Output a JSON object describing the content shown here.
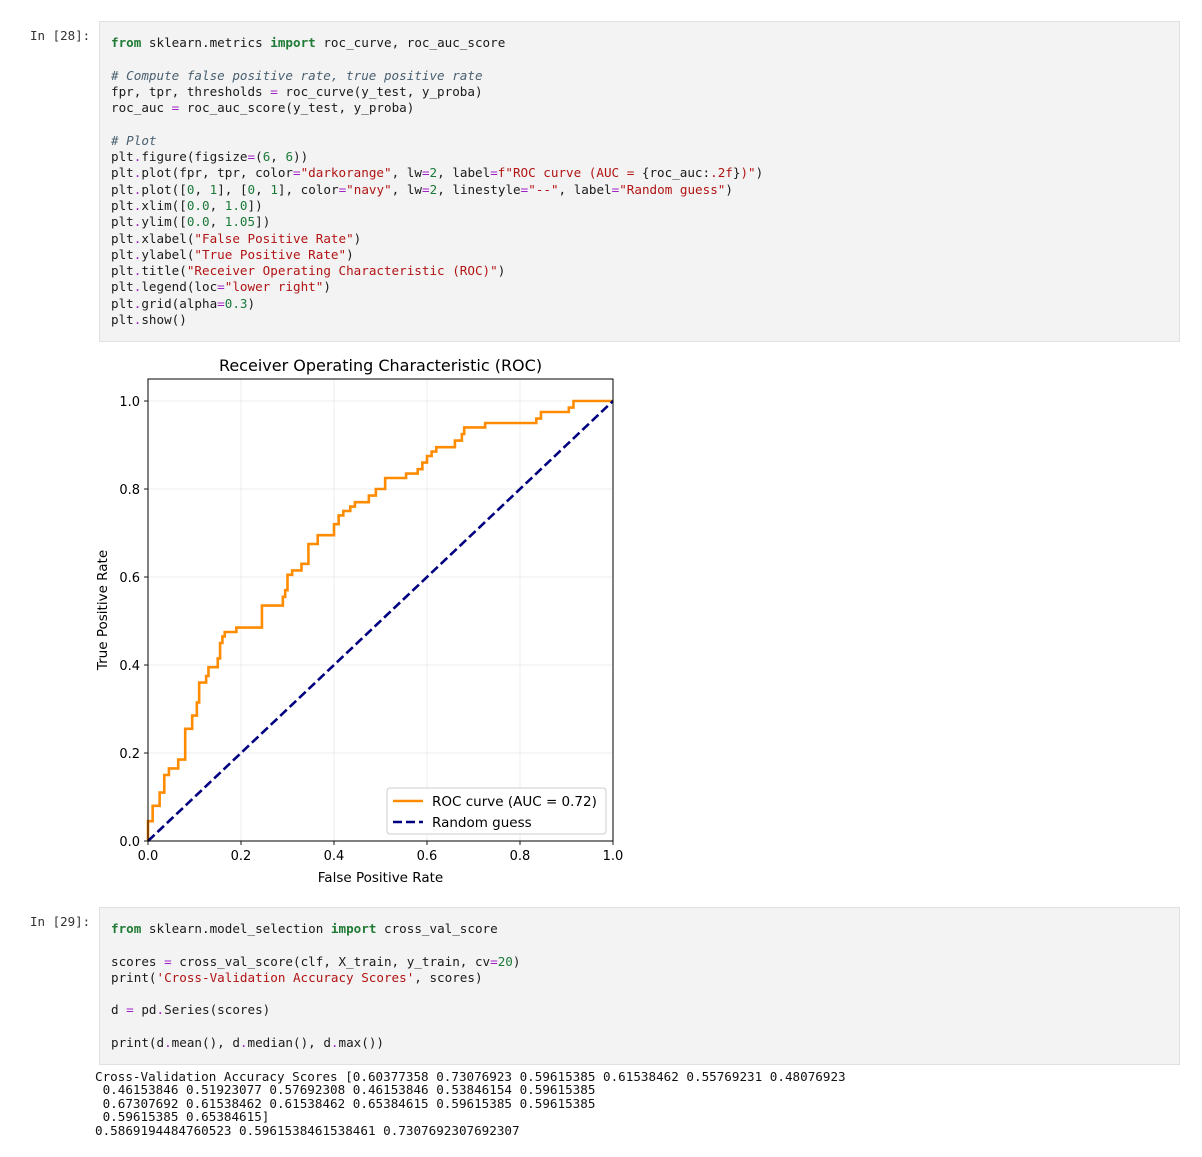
{
  "cells": [
    {
      "prompt": "In [28]:",
      "code_lines": [
        [
          [
            "kw",
            "from"
          ],
          [
            "t",
            " sklearn.metrics "
          ],
          [
            "kw",
            "import"
          ],
          [
            "t",
            " roc_curve, roc_auc_score"
          ]
        ],
        [],
        [
          [
            "cm",
            "# Compute false positive rate, true positive rate"
          ]
        ],
        [
          [
            "t",
            "fpr, tpr, thresholds "
          ],
          [
            "op",
            "="
          ],
          [
            "t",
            " roc_curve(y_test, y_proba)"
          ]
        ],
        [
          [
            "t",
            "roc_auc "
          ],
          [
            "op",
            "="
          ],
          [
            "t",
            " roc_auc_score(y_test, y_proba)"
          ]
        ],
        [],
        [
          [
            "cm",
            "# Plot"
          ]
        ],
        [
          [
            "t",
            "plt"
          ],
          [
            "op",
            "."
          ],
          [
            "t",
            "figure(figsize"
          ],
          [
            "op",
            "="
          ],
          [
            "t",
            "("
          ],
          [
            "num",
            "6"
          ],
          [
            "t",
            ", "
          ],
          [
            "num",
            "6"
          ],
          [
            "t",
            "))"
          ]
        ],
        [
          [
            "t",
            "plt"
          ],
          [
            "op",
            "."
          ],
          [
            "t",
            "plot(fpr, tpr, color"
          ],
          [
            "op",
            "="
          ],
          [
            "str",
            "\"darkorange\""
          ],
          [
            "t",
            ", lw"
          ],
          [
            "op",
            "="
          ],
          [
            "num",
            "2"
          ],
          [
            "t",
            ", label"
          ],
          [
            "op",
            "="
          ],
          [
            "str",
            "f\"ROC curve (AUC = "
          ],
          [
            "t",
            "{roc_auc:"
          ],
          [
            "str",
            ".2f"
          ],
          [
            "t",
            "}"
          ],
          [
            "str",
            ")\""
          ],
          [
            "t",
            ")"
          ]
        ],
        [
          [
            "t",
            "plt"
          ],
          [
            "op",
            "."
          ],
          [
            "t",
            "plot(["
          ],
          [
            "num",
            "0"
          ],
          [
            "t",
            ", "
          ],
          [
            "num",
            "1"
          ],
          [
            "t",
            "], ["
          ],
          [
            "num",
            "0"
          ],
          [
            "t",
            ", "
          ],
          [
            "num",
            "1"
          ],
          [
            "t",
            "], color"
          ],
          [
            "op",
            "="
          ],
          [
            "str",
            "\"navy\""
          ],
          [
            "t",
            ", lw"
          ],
          [
            "op",
            "="
          ],
          [
            "num",
            "2"
          ],
          [
            "t",
            ", linestyle"
          ],
          [
            "op",
            "="
          ],
          [
            "str",
            "\"--\""
          ],
          [
            "t",
            ", label"
          ],
          [
            "op",
            "="
          ],
          [
            "str",
            "\"Random guess\""
          ],
          [
            "t",
            ")"
          ]
        ],
        [
          [
            "t",
            "plt"
          ],
          [
            "op",
            "."
          ],
          [
            "t",
            "xlim(["
          ],
          [
            "num",
            "0.0"
          ],
          [
            "t",
            ", "
          ],
          [
            "num",
            "1.0"
          ],
          [
            "t",
            "])"
          ]
        ],
        [
          [
            "t",
            "plt"
          ],
          [
            "op",
            "."
          ],
          [
            "t",
            "ylim(["
          ],
          [
            "num",
            "0.0"
          ],
          [
            "t",
            ", "
          ],
          [
            "num",
            "1.05"
          ],
          [
            "t",
            "])"
          ]
        ],
        [
          [
            "t",
            "plt"
          ],
          [
            "op",
            "."
          ],
          [
            "t",
            "xlabel("
          ],
          [
            "str",
            "\"False Positive Rate\""
          ],
          [
            "t",
            ")"
          ]
        ],
        [
          [
            "t",
            "plt"
          ],
          [
            "op",
            "."
          ],
          [
            "t",
            "ylabel("
          ],
          [
            "str",
            "\"True Positive Rate\""
          ],
          [
            "t",
            ")"
          ]
        ],
        [
          [
            "t",
            "plt"
          ],
          [
            "op",
            "."
          ],
          [
            "t",
            "title("
          ],
          [
            "str",
            "\"Receiver Operating Characteristic (ROC)\""
          ],
          [
            "t",
            ")"
          ]
        ],
        [
          [
            "t",
            "plt"
          ],
          [
            "op",
            "."
          ],
          [
            "t",
            "legend(loc"
          ],
          [
            "op",
            "="
          ],
          [
            "str",
            "\"lower right\""
          ],
          [
            "t",
            ")"
          ]
        ],
        [
          [
            "t",
            "plt"
          ],
          [
            "op",
            "."
          ],
          [
            "t",
            "grid(alpha"
          ],
          [
            "op",
            "="
          ],
          [
            "num",
            "0.3"
          ],
          [
            "t",
            ")"
          ]
        ],
        [
          [
            "t",
            "plt"
          ],
          [
            "op",
            "."
          ],
          [
            "t",
            "show()"
          ]
        ]
      ]
    },
    {
      "prompt": "In [29]:",
      "code_lines": [
        [
          [
            "kw",
            "from"
          ],
          [
            "t",
            " sklearn.model_selection "
          ],
          [
            "kw",
            "import"
          ],
          [
            "t",
            " cross_val_score"
          ]
        ],
        [],
        [
          [
            "t",
            "scores "
          ],
          [
            "op",
            "="
          ],
          [
            "t",
            " cross_val_score(clf, X_train, y_train, cv"
          ],
          [
            "op",
            "="
          ],
          [
            "num",
            "20"
          ],
          [
            "t",
            ")"
          ]
        ],
        [
          [
            "t",
            "print("
          ],
          [
            "str",
            "'Cross-Validation Accuracy Scores'"
          ],
          [
            "t",
            ", scores)"
          ]
        ],
        [],
        [
          [
            "t",
            "d "
          ],
          [
            "op",
            "="
          ],
          [
            "t",
            " pd"
          ],
          [
            "op",
            "."
          ],
          [
            "t",
            "Series(scores)"
          ]
        ],
        [],
        [
          [
            "t",
            "print(d"
          ],
          [
            "op",
            "."
          ],
          [
            "t",
            "mean(), d"
          ],
          [
            "op",
            "."
          ],
          [
            "t",
            "median(), d"
          ],
          [
            "op",
            "."
          ],
          [
            "t",
            "max())"
          ]
        ]
      ],
      "output_lines": [
        "Cross-Validation Accuracy Scores [0.60377358 0.73076923 0.59615385 0.61538462 0.55769231 0.48076923",
        " 0.46153846 0.51923077 0.57692308 0.46153846 0.53846154 0.59615385",
        " 0.67307692 0.61538462 0.61538462 0.65384615 0.59615385 0.59615385",
        " 0.59615385 0.65384615]",
        "0.5869194484760523 0.5961538461538461 0.7307692307692307"
      ]
    }
  ],
  "chart_data": {
    "type": "line",
    "title": "Receiver Operating Characteristic (ROC)",
    "xlabel": "False Positive Rate",
    "ylabel": "True Positive Rate",
    "xlim": [
      0.0,
      1.0
    ],
    "ylim": [
      0.0,
      1.05
    ],
    "xticks": [
      "0.0",
      "0.2",
      "0.4",
      "0.6",
      "0.8",
      "1.0"
    ],
    "yticks": [
      "0.0",
      "0.2",
      "0.4",
      "0.6",
      "0.8",
      "1.0"
    ],
    "grid": true,
    "legend": "lower right",
    "series": [
      {
        "name": "ROC curve (AUC = 0.72)",
        "color": "#ff8c00",
        "steps": [
          [
            0.0,
            0.0
          ],
          [
            0.0,
            0.045
          ],
          [
            0.01,
            0.045
          ],
          [
            0.01,
            0.08
          ],
          [
            0.025,
            0.08
          ],
          [
            0.025,
            0.11
          ],
          [
            0.035,
            0.11
          ],
          [
            0.035,
            0.15
          ],
          [
            0.045,
            0.15
          ],
          [
            0.045,
            0.165
          ],
          [
            0.065,
            0.165
          ],
          [
            0.065,
            0.185
          ],
          [
            0.08,
            0.185
          ],
          [
            0.08,
            0.255
          ],
          [
            0.095,
            0.255
          ],
          [
            0.095,
            0.285
          ],
          [
            0.105,
            0.285
          ],
          [
            0.105,
            0.315
          ],
          [
            0.11,
            0.315
          ],
          [
            0.11,
            0.36
          ],
          [
            0.125,
            0.36
          ],
          [
            0.125,
            0.375
          ],
          [
            0.13,
            0.375
          ],
          [
            0.13,
            0.395
          ],
          [
            0.15,
            0.395
          ],
          [
            0.15,
            0.415
          ],
          [
            0.155,
            0.415
          ],
          [
            0.155,
            0.45
          ],
          [
            0.16,
            0.45
          ],
          [
            0.16,
            0.465
          ],
          [
            0.165,
            0.465
          ],
          [
            0.165,
            0.475
          ],
          [
            0.19,
            0.475
          ],
          [
            0.19,
            0.485
          ],
          [
            0.245,
            0.485
          ],
          [
            0.245,
            0.535
          ],
          [
            0.29,
            0.535
          ],
          [
            0.29,
            0.555
          ],
          [
            0.295,
            0.555
          ],
          [
            0.295,
            0.57
          ],
          [
            0.3,
            0.57
          ],
          [
            0.3,
            0.605
          ],
          [
            0.31,
            0.605
          ],
          [
            0.31,
            0.615
          ],
          [
            0.33,
            0.615
          ],
          [
            0.33,
            0.63
          ],
          [
            0.345,
            0.63
          ],
          [
            0.345,
            0.675
          ],
          [
            0.365,
            0.675
          ],
          [
            0.365,
            0.695
          ],
          [
            0.4,
            0.695
          ],
          [
            0.4,
            0.72
          ],
          [
            0.41,
            0.72
          ],
          [
            0.41,
            0.74
          ],
          [
            0.42,
            0.74
          ],
          [
            0.42,
            0.75
          ],
          [
            0.435,
            0.75
          ],
          [
            0.435,
            0.76
          ],
          [
            0.445,
            0.76
          ],
          [
            0.445,
            0.77
          ],
          [
            0.475,
            0.77
          ],
          [
            0.475,
            0.785
          ],
          [
            0.49,
            0.785
          ],
          [
            0.49,
            0.8
          ],
          [
            0.51,
            0.8
          ],
          [
            0.51,
            0.825
          ],
          [
            0.555,
            0.825
          ],
          [
            0.555,
            0.835
          ],
          [
            0.58,
            0.835
          ],
          [
            0.58,
            0.845
          ],
          [
            0.59,
            0.845
          ],
          [
            0.59,
            0.86
          ],
          [
            0.6,
            0.86
          ],
          [
            0.6,
            0.875
          ],
          [
            0.61,
            0.875
          ],
          [
            0.61,
            0.885
          ],
          [
            0.62,
            0.885
          ],
          [
            0.62,
            0.895
          ],
          [
            0.66,
            0.895
          ],
          [
            0.66,
            0.91
          ],
          [
            0.675,
            0.91
          ],
          [
            0.675,
            0.925
          ],
          [
            0.68,
            0.925
          ],
          [
            0.68,
            0.94
          ],
          [
            0.725,
            0.94
          ],
          [
            0.725,
            0.95
          ],
          [
            0.835,
            0.95
          ],
          [
            0.835,
            0.96
          ],
          [
            0.845,
            0.96
          ],
          [
            0.845,
            0.975
          ],
          [
            0.905,
            0.975
          ],
          [
            0.905,
            0.985
          ],
          [
            0.915,
            0.985
          ],
          [
            0.915,
            1.0
          ],
          [
            1.0,
            1.0
          ]
        ]
      },
      {
        "name": "Random guess",
        "color": "#000080",
        "dashed": true,
        "x": [
          0.0,
          1.0
        ],
        "y": [
          0.0,
          1.0
        ]
      }
    ]
  }
}
